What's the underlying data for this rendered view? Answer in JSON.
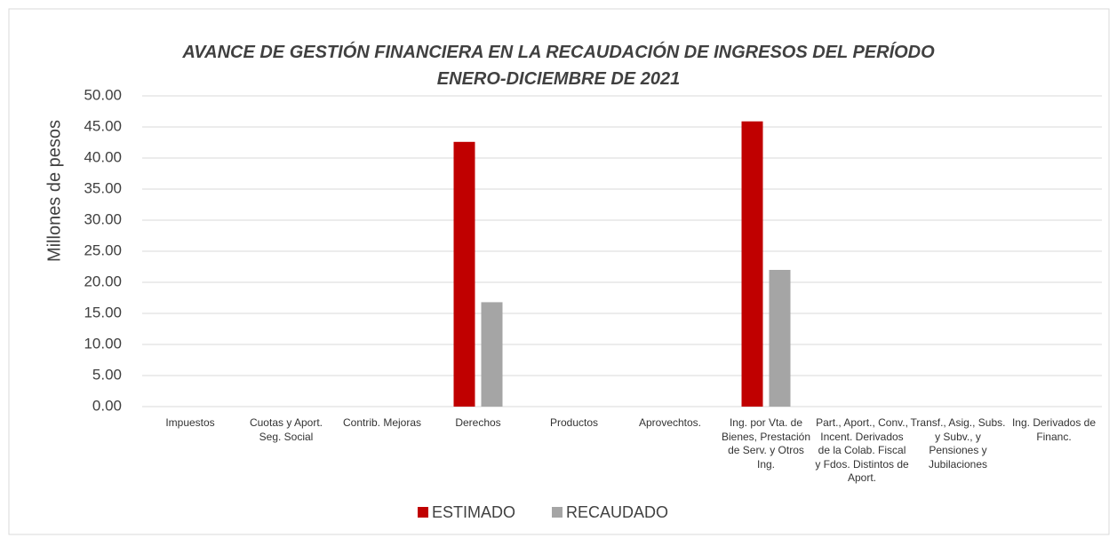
{
  "chart_data": {
    "type": "bar",
    "title": "AVANCE DE GESTIÓN FINANCIERA EN LA RECAUDACIÓN DE INGRESOS DEL PERÍODO ENERO-DICIEMBRE DE 2021",
    "ylabel": "Millones de pesos",
    "categories": [
      "Impuestos",
      "Cuotas y Aport. Seg. Social",
      "Contrib. Mejoras",
      "Derechos",
      "Productos",
      "Aprovechtos.",
      "Ing. por Vta. de Bienes, Prestación de Serv. y Otros Ing.",
      "Part., Aport., Conv., Incent. Derivados de la Colab. Fiscal y Fdos. Distintos de Aport.",
      "Transf., Asig., Subs. y Subv., y Pensiones y Jubilaciones",
      "Ing. Derivados de Financ."
    ],
    "series": [
      {
        "name": "ESTIMADO",
        "color": "#c00000",
        "values": [
          0,
          0,
          0,
          42.6,
          0,
          0,
          45.9,
          0,
          0,
          0
        ]
      },
      {
        "name": "RECAUDADO",
        "color": "#a5a5a5",
        "values": [
          0,
          0,
          0,
          16.8,
          0,
          0,
          22.0,
          0,
          0,
          0
        ]
      }
    ],
    "ylim": [
      0,
      50
    ],
    "yticks": [
      {
        "value": 0,
        "label": "0.00"
      },
      {
        "value": 5,
        "label": "5.00"
      },
      {
        "value": 10,
        "label": "10.00"
      },
      {
        "value": 15,
        "label": "15.00"
      },
      {
        "value": 20,
        "label": "20.00"
      },
      {
        "value": 25,
        "label": "25.00"
      },
      {
        "value": 30,
        "label": "30.00"
      },
      {
        "value": 35,
        "label": "35.00"
      },
      {
        "value": 40,
        "label": "40.00"
      },
      {
        "value": 45,
        "label": "45.00"
      },
      {
        "value": 50,
        "label": "50.00"
      }
    ],
    "grid": true,
    "legend": "bottom"
  }
}
